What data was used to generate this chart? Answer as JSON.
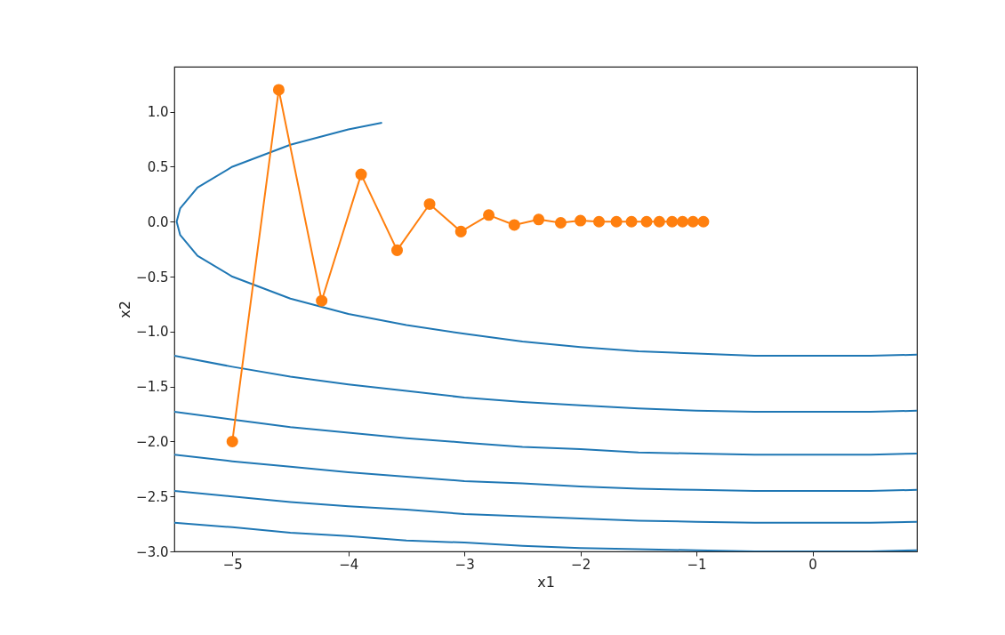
{
  "chart_data": {
    "type": "line",
    "xlabel": "x1",
    "ylabel": "x2",
    "xlim": [
      -5.5,
      0.9
    ],
    "ylim": [
      -3.0,
      1.41
    ],
    "xticks": [
      {
        "value": -5,
        "label": "−5"
      },
      {
        "value": -4,
        "label": "−4"
      },
      {
        "value": -3,
        "label": "−3"
      },
      {
        "value": -2,
        "label": "−2"
      },
      {
        "value": -1,
        "label": "−1"
      },
      {
        "value": 0,
        "label": "0"
      }
    ],
    "yticks": [
      {
        "value": -3.0,
        "label": "−3.0"
      },
      {
        "value": -2.5,
        "label": "−2.5"
      },
      {
        "value": -2.0,
        "label": "−2.0"
      },
      {
        "value": -1.5,
        "label": "−1.5"
      },
      {
        "value": -1.0,
        "label": "−1.0"
      },
      {
        "value": -0.5,
        "label": "−0.5"
      },
      {
        "value": 0.0,
        "label": "0.0"
      },
      {
        "value": 0.5,
        "label": "0.5"
      },
      {
        "value": 1.0,
        "label": "1.0"
      }
    ],
    "grid": false,
    "line_style": "solid",
    "series": [
      {
        "color": "#1f77b4",
        "marker": "none",
        "x": [
          -3.71,
          -4,
          -4.5,
          -5,
          -5.3,
          -5.45,
          -5.48,
          -5.45,
          -5.3,
          -5,
          -4.5,
          -4,
          -3.5,
          -3,
          -2.5,
          -2,
          -1.5,
          -1,
          -0.5,
          0,
          0.5,
          0.9
        ],
        "values": [
          0.9,
          0.84,
          0.7,
          0.5,
          0.31,
          0.12,
          0,
          -0.12,
          -0.31,
          -0.5,
          -0.7,
          -0.84,
          -0.94,
          -1.02,
          -1.09,
          -1.14,
          -1.18,
          -1.2,
          -1.22,
          -1.22,
          -1.22,
          -1.21
        ]
      },
      {
        "color": "#1f77b4",
        "marker": "none",
        "x": [
          -5.5,
          -5,
          -4.5,
          -4,
          -3.5,
          -3,
          -2.5,
          -2,
          -1.5,
          -1,
          -0.5,
          0,
          0.5,
          0.9
        ],
        "values": [
          -1.22,
          -1.32,
          -1.41,
          -1.48,
          -1.54,
          -1.6,
          -1.64,
          -1.67,
          -1.7,
          -1.72,
          -1.73,
          -1.73,
          -1.73,
          -1.72
        ]
      },
      {
        "color": "#1f77b4",
        "marker": "none",
        "x": [
          -5.5,
          -5,
          -4.5,
          -4,
          -3.5,
          -3,
          -2.5,
          -2,
          -1.5,
          -1,
          -0.5,
          0,
          0.5,
          0.9
        ],
        "values": [
          -1.73,
          -1.8,
          -1.87,
          -1.92,
          -1.97,
          -2.01,
          -2.05,
          -2.07,
          -2.1,
          -2.11,
          -2.12,
          -2.12,
          -2.12,
          -2.11
        ]
      },
      {
        "color": "#1f77b4",
        "marker": "none",
        "x": [
          -5.5,
          -5,
          -4.5,
          -4,
          -3.5,
          -3,
          -2.5,
          -2,
          -1.5,
          -1,
          -0.5,
          0,
          0.5,
          0.9
        ],
        "values": [
          -2.12,
          -2.18,
          -2.23,
          -2.28,
          -2.32,
          -2.36,
          -2.38,
          -2.41,
          -2.43,
          -2.44,
          -2.45,
          -2.45,
          -2.45,
          -2.44
        ]
      },
      {
        "color": "#1f77b4",
        "marker": "none",
        "x": [
          -5.5,
          -5,
          -4.5,
          -4,
          -3.5,
          -3,
          -2.5,
          -2,
          -1.5,
          -1,
          -0.5,
          0,
          0.5,
          0.9
        ],
        "values": [
          -2.45,
          -2.5,
          -2.55,
          -2.59,
          -2.62,
          -2.66,
          -2.68,
          -2.7,
          -2.72,
          -2.73,
          -2.74,
          -2.74,
          -2.74,
          -2.73
        ]
      },
      {
        "color": "#1f77b4",
        "marker": "none",
        "x": [
          -5.5,
          -5,
          -4.5,
          -4,
          -3.5,
          -3,
          -2.5,
          -2,
          -1.5,
          -1,
          -0.5,
          0,
          0.5,
          0.9
        ],
        "values": [
          -2.74,
          -2.78,
          -2.83,
          -2.86,
          -2.9,
          -2.92,
          -2.95,
          -2.97,
          -2.98,
          -2.99,
          -3.0,
          -3.0,
          -3.0,
          -2.99
        ]
      },
      {
        "color": "#ff7f0e",
        "marker": "circle",
        "x": [
          -5,
          -4.6,
          -4.23,
          -3.89,
          -3.58,
          -3.3,
          -3.03,
          -2.79,
          -2.57,
          -2.36,
          -2.17,
          -2.0,
          -1.84,
          -1.69,
          -1.56,
          -1.43,
          -1.32,
          -1.21,
          -1.12,
          -1.03,
          -0.94
        ],
        "values": [
          -2,
          1.2,
          -0.72,
          0.43,
          -0.26,
          0.16,
          -0.09,
          0.06,
          -0.03,
          0.02,
          -0.01,
          0.01,
          0,
          0,
          0,
          0,
          0,
          0,
          0,
          0,
          0
        ]
      }
    ]
  }
}
